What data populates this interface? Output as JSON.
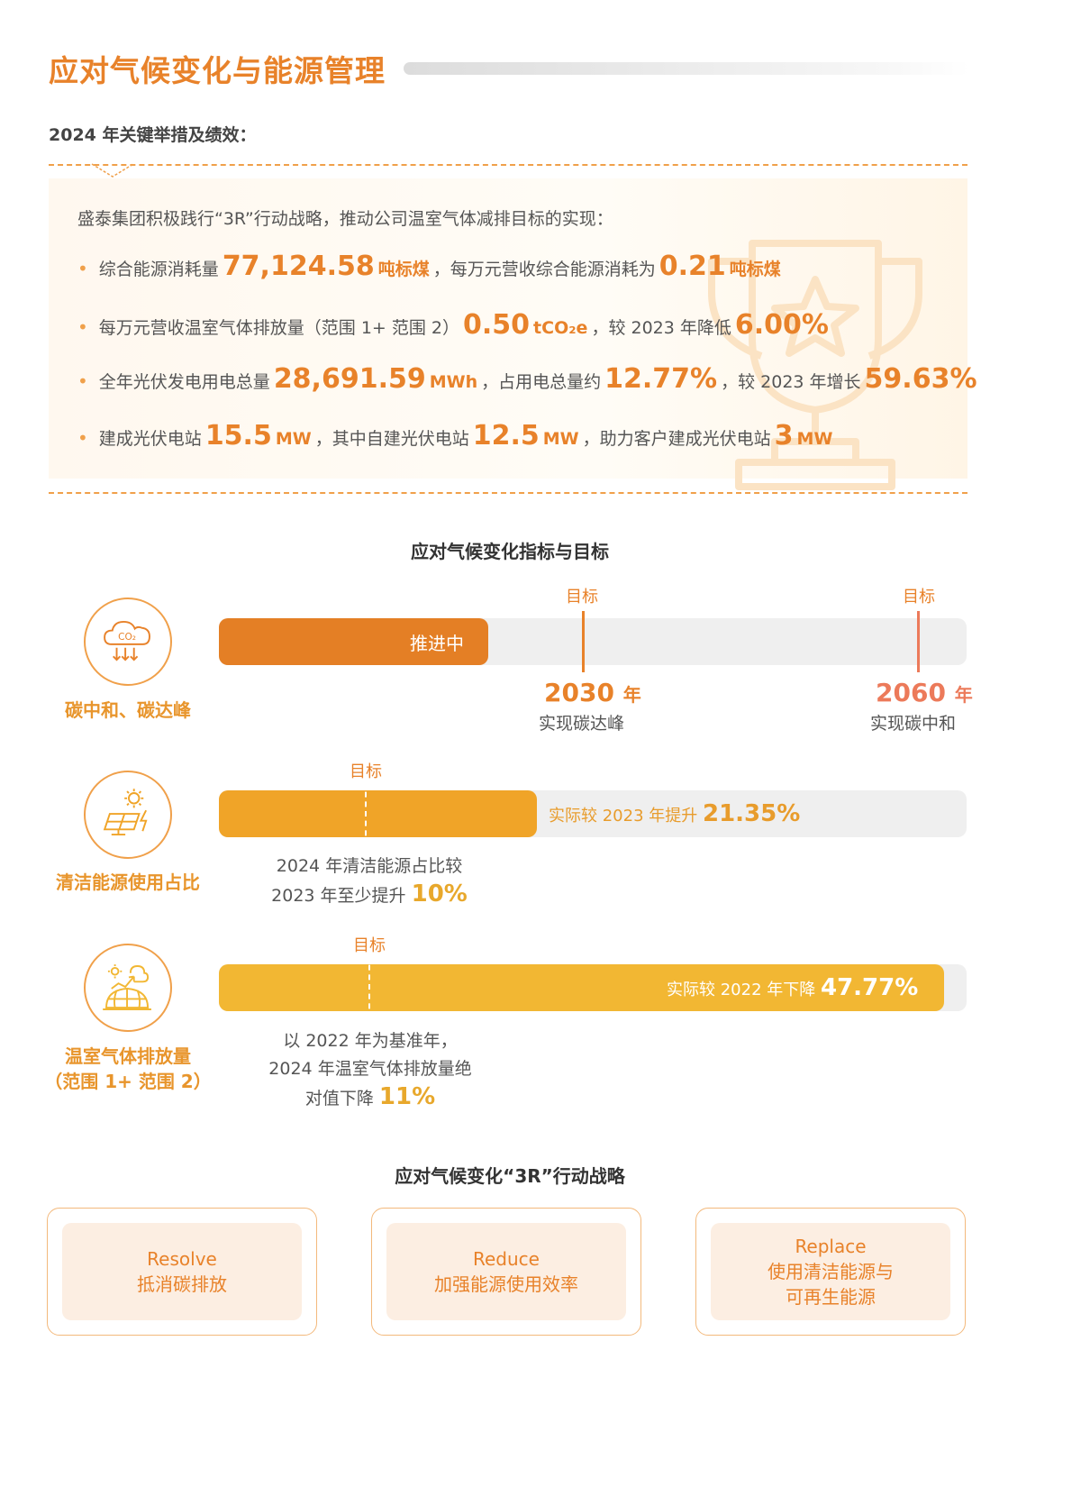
{
  "page": {
    "title": "应对气候变化与能源管理",
    "subtitle": "2024 年关键举措及绩效："
  },
  "highlights": {
    "intro": "盛泰集团积极践行“3R”行动战略，推动公司温室气体减排目标的实现：",
    "items": [
      {
        "t1": "综合能源消耗量",
        "v1": "77,124.58",
        "u1": "吨标煤",
        "t2": "，每万元营收综合能源消耗为",
        "v2": "0.21",
        "u2": "吨标煤"
      },
      {
        "t1": "每万元营收温室气体排放量（范围 1+ 范围 2）",
        "v1": "0.50",
        "u1": "tCO₂e",
        "t2": "，较 2023 年降低",
        "v2": "6.00%"
      },
      {
        "t1": "全年光伏发电用电总量",
        "v1": "28,691.59",
        "u1": "MWh",
        "t2": "，占用电总量约",
        "v2": "12.77%",
        "t3": "，较 2023 年增长",
        "v3": "59.63%"
      },
      {
        "t1": "建成光伏电站",
        "v1": "15.5",
        "u1": "MW",
        "t2": "，其中自建光伏电站",
        "v2": "12.5",
        "u2": "MW",
        "t3": "，助力客户建成光伏电站",
        "v3": "3",
        "u3": "MW"
      }
    ]
  },
  "indicators": {
    "title": "应对气候变化指标与目标",
    "rows": [
      {
        "label": "碳中和、碳达峰",
        "icon": "co2-cloud-icon",
        "bar_text": "推进中",
        "fill_fraction": 0.36,
        "bar_color": "#e47f25",
        "target_label": "目标",
        "target1_year": "2030",
        "target1_year_unit": "年",
        "target1_desc": "实现碳达峰",
        "target2_year": "2060",
        "target2_year_unit": "年",
        "target2_desc": "实现碳中和"
      },
      {
        "label": "清洁能源使用占比",
        "icon": "solar-panel-icon",
        "target_label": "目标",
        "fill_fraction": 0.425,
        "bar_color": "#f0a428",
        "result_text": "实际较 2023 年提升",
        "result_value": "21.35%",
        "note_line1": "2024 年清洁能源占比较",
        "note_line2": "2023 年至少提升",
        "note_value": "10%"
      },
      {
        "label_line1": "温室气体排放量",
        "label_line2": "（范围 1+ 范围 2）",
        "icon": "globe-emission-icon",
        "target_label": "目标",
        "fill_fraction": 0.97,
        "bar_color": "#f2b733",
        "result_text": "实际较 2022 年下降",
        "result_value": "47.77%",
        "note_line1": "以 2022 年为基准年，",
        "note_line2": "2024 年温室气体排放量绝",
        "note_line3": "对值下降",
        "note_value": "11%"
      }
    ]
  },
  "strategy": {
    "title": "应对气候变化“3R”行动战略",
    "cards": [
      {
        "en": "Resolve",
        "zh": "抵消碳排放"
      },
      {
        "en": "Reduce",
        "zh": "加强能源使用效率"
      },
      {
        "en": "Replace",
        "zh": "使用清洁能源与\n可再生能源"
      }
    ]
  },
  "colors": {
    "accent": "#e8822a",
    "light_accent": "#f0a04a",
    "track": "#efefef",
    "target_line_2060": "#ec7a5a"
  }
}
